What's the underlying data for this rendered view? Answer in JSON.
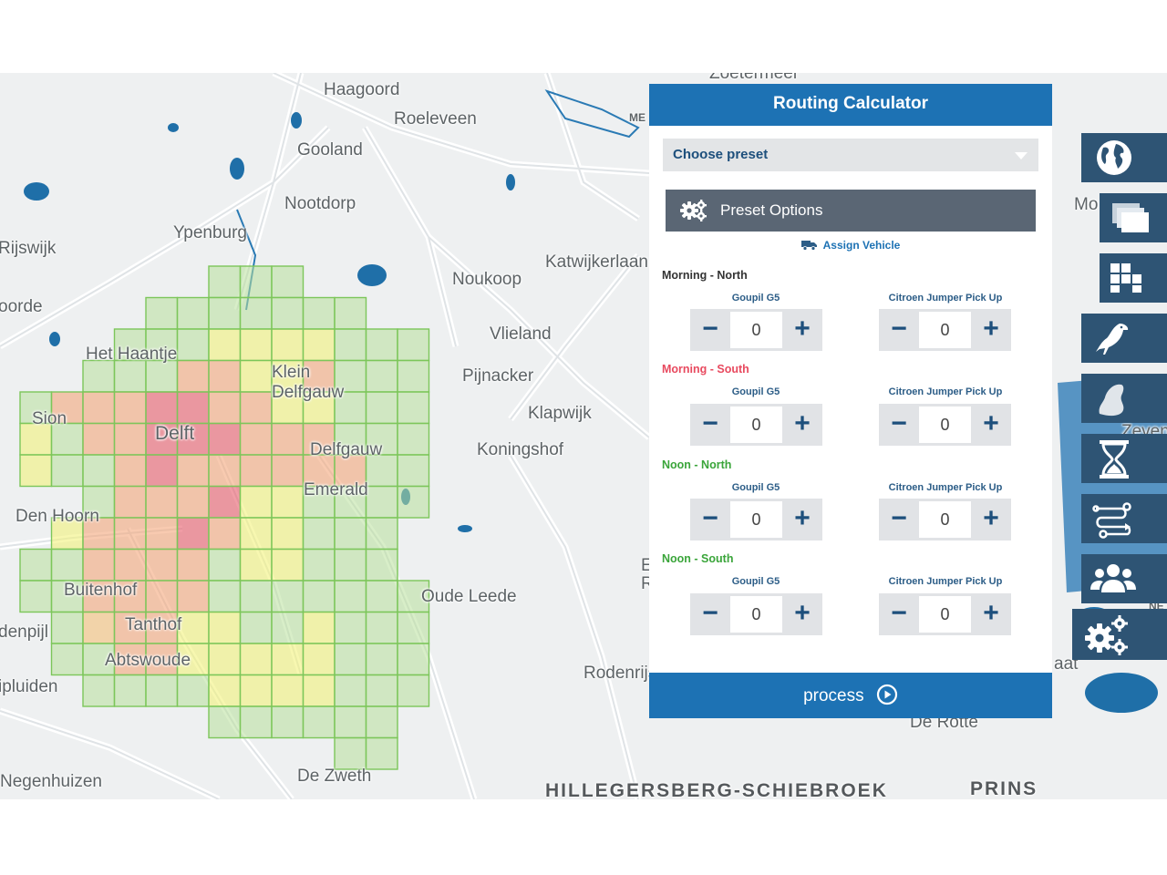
{
  "map": {
    "places": [
      "Haagoord",
      "Roeleveen",
      "Gooland",
      "Nootdorp",
      "Ypenburg",
      "Rijswijk",
      "oorde",
      "Noukoop",
      "Katwijkerlaan",
      "Vlieland",
      "Pijnacker",
      "Klapwijk",
      "Koningshof",
      "Het Haantje",
      "Klein Delfgauw",
      "Delfgauw",
      "Delft",
      "Sion",
      "Emerald",
      "Den Hoorn",
      "Buitenhof",
      "Tanthof",
      "Abtswoude",
      "denpijl",
      "ipluiden",
      "Oude Leede",
      "Rodenrijs",
      "Negenhuizen",
      "De Zweth",
      "HILLEGERSBERG-SCHIEBROEK",
      "PRINS",
      "De Rotte",
      "Mo",
      "Zevenhuizen",
      "NE",
      "aat",
      "ME",
      "E",
      "R",
      "Zoetermeer"
    ],
    "heatmap_legend_colors": {
      "high": "#e85b6b",
      "medium_high": "#f3a77b",
      "medium": "#f7d07a",
      "low_medium": "#f2f27c",
      "low": "#b8e09a"
    }
  },
  "panel": {
    "title": "Routing Calculator",
    "preset_select": {
      "value": "Choose preset"
    },
    "preset_options_label": "Preset Options",
    "assign_vehicle_label": "Assign Vehicle",
    "slots": [
      {
        "title": "Morning - North",
        "title_color": "#333333",
        "vehicles": [
          {
            "label": "Goupil G5",
            "value": "0"
          },
          {
            "label": "Citroen Jumper Pick Up",
            "value": "0"
          }
        ]
      },
      {
        "title": "Morning - South",
        "title_color": "#e84a5f",
        "vehicles": [
          {
            "label": "Goupil G5",
            "value": "0"
          },
          {
            "label": "Citroen Jumper Pick Up",
            "value": "0"
          }
        ]
      },
      {
        "title": "Noon - North",
        "title_color": "#3aa53a",
        "vehicles": [
          {
            "label": "Goupil G5",
            "value": "0"
          },
          {
            "label": "Citroen Jumper Pick Up",
            "value": "0"
          }
        ]
      },
      {
        "title": "Noon - South",
        "title_color": "#3aa53a",
        "vehicles": [
          {
            "label": "Goupil G5",
            "value": "0"
          },
          {
            "label": "Citroen Jumper Pick Up",
            "value": "0"
          }
        ]
      }
    ],
    "minus_symbol": "−",
    "plus_symbol": "+",
    "process_label": "process"
  },
  "toolbar": {
    "buttons": [
      "globe-icon",
      "layers-icon",
      "grid-icon",
      "raven-icon",
      "region-icon",
      "hourglass-icon",
      "route-icon",
      "users-icon",
      "settings-icon"
    ]
  },
  "colors": {
    "accent": "#1d72b4",
    "toolbar": "#2e5474",
    "button_dark": "#5a6674"
  }
}
